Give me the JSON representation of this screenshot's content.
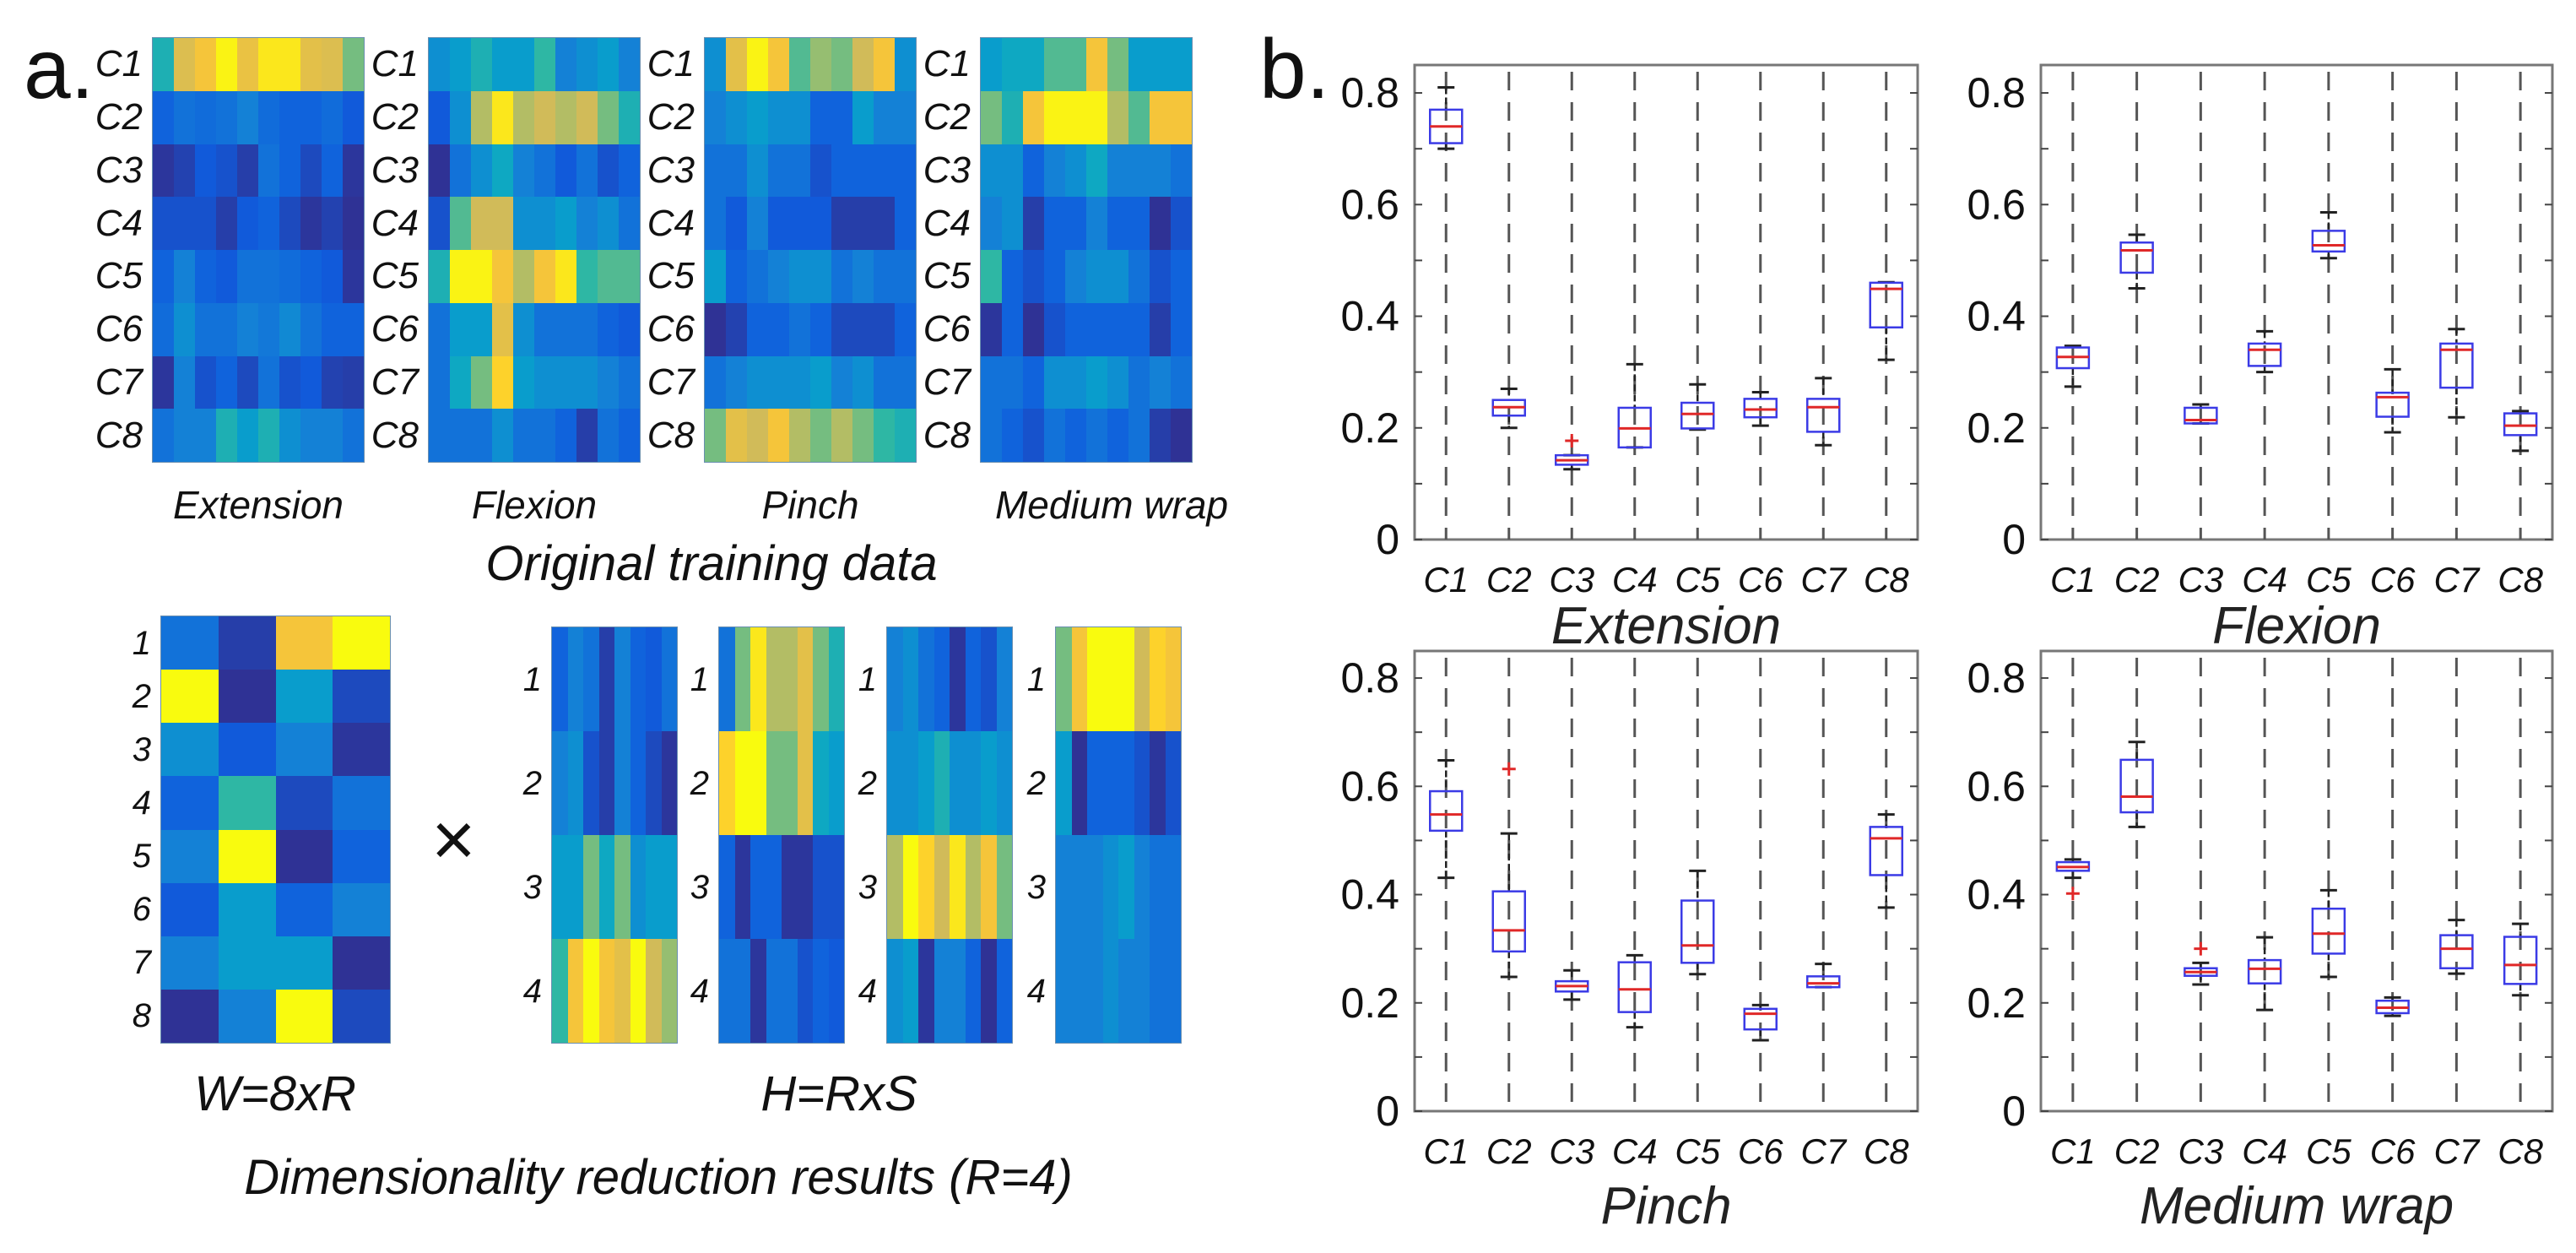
{
  "figure": {
    "panel_a_label": "a.",
    "panel_b_label": "b.",
    "original_title": "Original training data",
    "times_symbol": "×",
    "w_label": "W=8xR",
    "h_label": "H=RxS",
    "reduction_title": "Dimensionality reduction results (R=4)"
  },
  "colors": {
    "colormap": [
      "#352A87",
      "#0F5CDD",
      "#1481D6",
      "#06A4CA",
      "#2EB7A4",
      "#87BF77",
      "#D1BB59",
      "#FEC832",
      "#F9FB0E"
    ],
    "box_edge": "#3b3be6",
    "median": "#e02828",
    "whisker": "#222222",
    "outlier": "#e02828",
    "grid_dash": "#555555",
    "frame": "#777777"
  },
  "chart_data": [
    {
      "type": "heatmap",
      "name": "Extension",
      "rows": [
        "C1",
        "C2",
        "C3",
        "C4",
        "C5",
        "C6",
        "C7",
        "C8"
      ],
      "values": [
        [
          0.45,
          0.78,
          0.85,
          0.98,
          0.82,
          0.95,
          0.95,
          0.8,
          0.78,
          0.6
        ],
        [
          0.15,
          0.2,
          0.18,
          0.2,
          0.25,
          0.18,
          0.15,
          0.15,
          0.18,
          0.12
        ],
        [
          0.03,
          0.06,
          0.12,
          0.1,
          0.05,
          0.2,
          0.15,
          0.08,
          0.15,
          0.03
        ],
        [
          0.1,
          0.1,
          0.1,
          0.05,
          0.12,
          0.15,
          0.08,
          0.03,
          0.06,
          0.02
        ],
        [
          0.15,
          0.25,
          0.15,
          0.12,
          0.2,
          0.2,
          0.18,
          0.15,
          0.12,
          0.03
        ],
        [
          0.18,
          0.3,
          0.2,
          0.2,
          0.25,
          0.22,
          0.28,
          0.2,
          0.15,
          0.15
        ],
        [
          0.03,
          0.25,
          0.1,
          0.15,
          0.08,
          0.2,
          0.1,
          0.12,
          0.06,
          0.05
        ],
        [
          0.2,
          0.25,
          0.25,
          0.45,
          0.35,
          0.45,
          0.3,
          0.25,
          0.25,
          0.2
        ]
      ]
    },
    {
      "type": "heatmap",
      "name": "Flexion",
      "rows": [
        "C1",
        "C2",
        "C3",
        "C4",
        "C5",
        "C6",
        "C7",
        "C8"
      ],
      "values": [
        [
          0.3,
          0.35,
          0.45,
          0.35,
          0.35,
          0.5,
          0.25,
          0.3,
          0.35,
          0.25
        ],
        [
          0.12,
          0.3,
          0.7,
          0.95,
          0.7,
          0.75,
          0.7,
          0.75,
          0.6,
          0.45
        ],
        [
          0.02,
          0.2,
          0.3,
          0.4,
          0.25,
          0.2,
          0.12,
          0.2,
          0.1,
          0.15
        ],
        [
          0.1,
          0.55,
          0.75,
          0.75,
          0.3,
          0.3,
          0.35,
          0.25,
          0.3,
          0.2
        ],
        [
          0.45,
          0.98,
          0.98,
          0.85,
          0.7,
          0.85,
          0.95,
          0.5,
          0.55,
          0.55
        ],
        [
          0.2,
          0.35,
          0.35,
          0.8,
          0.3,
          0.2,
          0.2,
          0.2,
          0.15,
          0.12
        ],
        [
          0.2,
          0.4,
          0.6,
          0.9,
          0.35,
          0.3,
          0.3,
          0.3,
          0.25,
          0.2
        ],
        [
          0.2,
          0.2,
          0.2,
          0.3,
          0.2,
          0.2,
          0.15,
          0.05,
          0.2,
          0.15
        ]
      ]
    },
    {
      "type": "heatmap",
      "name": "Pinch",
      "rows": [
        "C1",
        "C2",
        "C3",
        "C4",
        "C5",
        "C6",
        "C7",
        "C8"
      ],
      "values": [
        [
          0.3,
          0.8,
          0.98,
          0.85,
          0.55,
          0.65,
          0.6,
          0.75,
          0.85,
          0.3
        ],
        [
          0.25,
          0.3,
          0.35,
          0.3,
          0.3,
          0.15,
          0.15,
          0.35,
          0.25,
          0.25
        ],
        [
          0.2,
          0.2,
          0.3,
          0.2,
          0.2,
          0.1,
          0.15,
          0.15,
          0.15,
          0.15
        ],
        [
          0.2,
          0.12,
          0.25,
          0.12,
          0.12,
          0.12,
          0.05,
          0.05,
          0.05,
          0.15
        ],
        [
          0.35,
          0.15,
          0.2,
          0.25,
          0.3,
          0.3,
          0.2,
          0.25,
          0.2,
          0.2
        ],
        [
          0.02,
          0.06,
          0.15,
          0.15,
          0.2,
          0.15,
          0.08,
          0.08,
          0.08,
          0.15
        ],
        [
          0.2,
          0.25,
          0.3,
          0.3,
          0.3,
          0.35,
          0.25,
          0.3,
          0.2,
          0.2
        ],
        [
          0.6,
          0.8,
          0.75,
          0.85,
          0.7,
          0.6,
          0.7,
          0.6,
          0.5,
          0.45
        ]
      ]
    },
    {
      "type": "heatmap",
      "name": "Medium wrap",
      "rows": [
        "C1",
        "C2",
        "C3",
        "C4",
        "C5",
        "C6",
        "C7",
        "C8"
      ],
      "values": [
        [
          0.35,
          0.4,
          0.4,
          0.55,
          0.55,
          0.85,
          0.6,
          0.35,
          0.35,
          0.35
        ],
        [
          0.6,
          0.45,
          0.85,
          0.98,
          0.98,
          0.98,
          0.7,
          0.55,
          0.85,
          0.85
        ],
        [
          0.3,
          0.3,
          0.15,
          0.25,
          0.3,
          0.4,
          0.25,
          0.25,
          0.25,
          0.2
        ],
        [
          0.25,
          0.3,
          0.05,
          0.15,
          0.15,
          0.25,
          0.15,
          0.15,
          0.02,
          0.1
        ],
        [
          0.5,
          0.15,
          0.1,
          0.15,
          0.25,
          0.3,
          0.3,
          0.2,
          0.1,
          0.15
        ],
        [
          0.03,
          0.15,
          0.02,
          0.1,
          0.15,
          0.15,
          0.15,
          0.15,
          0.05,
          0.15
        ],
        [
          0.2,
          0.2,
          0.15,
          0.3,
          0.3,
          0.35,
          0.3,
          0.2,
          0.25,
          0.2
        ],
        [
          0.2,
          0.15,
          0.1,
          0.2,
          0.15,
          0.2,
          0.15,
          0.2,
          0.05,
          0.02
        ]
      ]
    },
    {
      "type": "heatmap",
      "name": "W=8xR",
      "rows": [
        "1",
        "2",
        "3",
        "4",
        "5",
        "6",
        "7",
        "8"
      ],
      "values": [
        [
          0.2,
          0.05,
          0.85,
          1
        ],
        [
          1,
          0.02,
          0.35,
          0.08
        ],
        [
          0.3,
          0.12,
          0.25,
          0.03
        ],
        [
          0.15,
          0.5,
          0.08,
          0.2
        ],
        [
          0.25,
          1,
          0.02,
          0.15
        ],
        [
          0.12,
          0.35,
          0.15,
          0.25
        ],
        [
          0.25,
          0.35,
          0.35,
          0.02
        ],
        [
          0.02,
          0.25,
          1,
          0.08
        ]
      ]
    },
    {
      "type": "heatmap",
      "name": "H=RxS",
      "rows": [
        "1",
        "2",
        "3",
        "4"
      ],
      "values": [
        [
          0.15,
          0.25,
          0.2,
          0.05,
          0.25,
          0.15,
          0.12,
          0.2
        ],
        [
          0.25,
          0.3,
          0.1,
          0.05,
          0.25,
          0.15,
          0.08,
          0.03
        ],
        [
          0.35,
          0.35,
          0.6,
          0.4,
          0.6,
          0.3,
          0.35,
          0.35
        ],
        [
          0.5,
          0.85,
          1,
          0.85,
          0.8,
          1,
          0.75,
          0.65
        ]
      ]
    },
    {
      "type": "heatmap",
      "name": "H=RxS",
      "rows": [
        "1",
        "2",
        "3",
        "4"
      ],
      "values": [
        [
          0.2,
          0.6,
          0.95,
          0.7,
          0.7,
          0.8,
          0.6,
          0.45
        ],
        [
          0.9,
          1,
          1,
          0.6,
          0.6,
          0.8,
          0.4,
          0.35
        ],
        [
          0.15,
          0.03,
          0.15,
          0.15,
          0.03,
          0.03,
          0.1,
          0.1
        ],
        [
          0.2,
          0.2,
          0.03,
          0.2,
          0.2,
          0.1,
          0.15,
          0.12
        ]
      ]
    },
    {
      "type": "heatmap",
      "name": "H=RxS",
      "rows": [
        "1",
        "2",
        "3",
        "4"
      ],
      "values": [
        [
          0.25,
          0.3,
          0.2,
          0.15,
          0.03,
          0.15,
          0.1,
          0.25
        ],
        [
          0.3,
          0.3,
          0.35,
          0.45,
          0.3,
          0.3,
          0.35,
          0.3
        ],
        [
          0.7,
          1,
          0.9,
          0.75,
          0.95,
          0.7,
          0.85,
          0.6
        ],
        [
          0.3,
          0.35,
          0.03,
          0.25,
          0.25,
          0.15,
          0.02,
          0.15
        ]
      ]
    },
    {
      "type": "heatmap",
      "name": "H=RxS",
      "rows": [
        "1",
        "2",
        "3",
        "4"
      ],
      "values": [
        [
          0.6,
          0.85,
          1,
          1,
          1,
          0.75,
          0.9,
          0.85
        ],
        [
          0.35,
          0.02,
          0.15,
          0.15,
          0.15,
          0.1,
          0.03,
          0.1
        ],
        [
          0.25,
          0.25,
          0.25,
          0.3,
          0.35,
          0.25,
          0.2,
          0.2
        ],
        [
          0.25,
          0.25,
          0.25,
          0.3,
          0.25,
          0.25,
          0.2,
          0.2
        ]
      ]
    },
    {
      "type": "box",
      "title": "Extension",
      "categories": [
        "C1",
        "C2",
        "C3",
        "C4",
        "C5",
        "C6",
        "C7",
        "C8"
      ],
      "ylim": [
        0,
        0.85
      ],
      "yticks": [
        0,
        0.2,
        0.4,
        0.6,
        0.8
      ],
      "grid": "vertical-dashed",
      "stats": [
        {
          "low": 0.7,
          "q1": 0.71,
          "median": 0.74,
          "q3": 0.77,
          "high": 0.81,
          "outliers": []
        },
        {
          "low": 0.2,
          "q1": 0.222,
          "median": 0.237,
          "q3": 0.25,
          "high": 0.27,
          "outliers": []
        },
        {
          "low": 0.126,
          "q1": 0.134,
          "median": 0.142,
          "q3": 0.151,
          "high": 0.151,
          "outliers": [
            0.177
          ]
        },
        {
          "low": 0.165,
          "q1": 0.165,
          "median": 0.199,
          "q3": 0.236,
          "high": 0.314,
          "outliers": []
        },
        {
          "low": 0.197,
          "q1": 0.199,
          "median": 0.225,
          "q3": 0.245,
          "high": 0.278,
          "outliers": []
        },
        {
          "low": 0.204,
          "q1": 0.219,
          "median": 0.233,
          "q3": 0.252,
          "high": 0.264,
          "outliers": []
        },
        {
          "low": 0.169,
          "q1": 0.193,
          "median": 0.237,
          "q3": 0.252,
          "high": 0.289,
          "outliers": []
        },
        {
          "low": 0.322,
          "q1": 0.38,
          "median": 0.449,
          "q3": 0.46,
          "high": 0.461,
          "outliers": []
        }
      ]
    },
    {
      "type": "box",
      "title": "Flexion",
      "categories": [
        "C1",
        "C2",
        "C3",
        "C4",
        "C5",
        "C6",
        "C7",
        "C8"
      ],
      "ylim": [
        0,
        0.85
      ],
      "yticks": [
        0,
        0.2,
        0.4,
        0.6,
        0.8
      ],
      "grid": "vertical-dashed",
      "stats": [
        {
          "low": 0.274,
          "q1": 0.307,
          "median": 0.327,
          "q3": 0.344,
          "high": 0.347,
          "outliers": []
        },
        {
          "low": 0.45,
          "q1": 0.478,
          "median": 0.518,
          "q3": 0.532,
          "high": 0.546,
          "outliers": []
        },
        {
          "low": 0.208,
          "q1": 0.208,
          "median": 0.214,
          "q3": 0.236,
          "high": 0.242,
          "outliers": []
        },
        {
          "low": 0.3,
          "q1": 0.311,
          "median": 0.34,
          "q3": 0.351,
          "high": 0.373,
          "outliers": []
        },
        {
          "low": 0.504,
          "q1": 0.516,
          "median": 0.527,
          "q3": 0.553,
          "high": 0.586,
          "outliers": []
        },
        {
          "low": 0.192,
          "q1": 0.22,
          "median": 0.255,
          "q3": 0.263,
          "high": 0.305,
          "outliers": []
        },
        {
          "low": 0.219,
          "q1": 0.272,
          "median": 0.34,
          "q3": 0.351,
          "high": 0.377,
          "outliers": []
        },
        {
          "low": 0.159,
          "q1": 0.187,
          "median": 0.204,
          "q3": 0.226,
          "high": 0.23,
          "outliers": []
        }
      ]
    },
    {
      "type": "box",
      "title": "Pinch",
      "categories": [
        "C1",
        "C2",
        "C3",
        "C4",
        "C5",
        "C6",
        "C7",
        "C8"
      ],
      "ylim": [
        0,
        0.85
      ],
      "yticks": [
        0,
        0.2,
        0.4,
        0.6,
        0.8
      ],
      "grid": "vertical-dashed",
      "stats": [
        {
          "low": 0.431,
          "q1": 0.518,
          "median": 0.548,
          "q3": 0.591,
          "high": 0.648,
          "outliers": []
        },
        {
          "low": 0.248,
          "q1": 0.295,
          "median": 0.334,
          "q3": 0.406,
          "high": 0.513,
          "outliers": [
            0.632
          ]
        },
        {
          "low": 0.206,
          "q1": 0.221,
          "median": 0.231,
          "q3": 0.24,
          "high": 0.26,
          "outliers": []
        },
        {
          "low": 0.155,
          "q1": 0.183,
          "median": 0.225,
          "q3": 0.275,
          "high": 0.288,
          "outliers": []
        },
        {
          "low": 0.253,
          "q1": 0.274,
          "median": 0.306,
          "q3": 0.389,
          "high": 0.444,
          "outliers": []
        },
        {
          "low": 0.131,
          "q1": 0.151,
          "median": 0.18,
          "q3": 0.189,
          "high": 0.196,
          "outliers": []
        },
        {
          "low": 0.229,
          "q1": 0.229,
          "median": 0.236,
          "q3": 0.249,
          "high": 0.272,
          "outliers": []
        },
        {
          "low": 0.376,
          "q1": 0.436,
          "median": 0.504,
          "q3": 0.525,
          "high": 0.548,
          "outliers": []
        }
      ]
    },
    {
      "type": "box",
      "title": "Medium wrap",
      "categories": [
        "C1",
        "C2",
        "C3",
        "C4",
        "C5",
        "C6",
        "C7",
        "C8"
      ],
      "ylim": [
        0,
        0.85
      ],
      "yticks": [
        0,
        0.2,
        0.4,
        0.6,
        0.8
      ],
      "grid": "vertical-dashed",
      "stats": [
        {
          "low": 0.431,
          "q1": 0.444,
          "median": 0.451,
          "q3": 0.46,
          "high": 0.465,
          "outliers": [
            0.402
          ]
        },
        {
          "low": 0.525,
          "q1": 0.552,
          "median": 0.581,
          "q3": 0.649,
          "high": 0.682,
          "outliers": []
        },
        {
          "low": 0.234,
          "q1": 0.25,
          "median": 0.257,
          "q3": 0.264,
          "high": 0.274,
          "outliers": [
            0.3
          ]
        },
        {
          "low": 0.187,
          "q1": 0.236,
          "median": 0.263,
          "q3": 0.279,
          "high": 0.321,
          "outliers": []
        },
        {
          "low": 0.248,
          "q1": 0.291,
          "median": 0.328,
          "q3": 0.374,
          "high": 0.408,
          "outliers": []
        },
        {
          "low": 0.176,
          "q1": 0.181,
          "median": 0.191,
          "q3": 0.204,
          "high": 0.21,
          "outliers": []
        },
        {
          "low": 0.254,
          "q1": 0.264,
          "median": 0.3,
          "q3": 0.325,
          "high": 0.353,
          "outliers": []
        },
        {
          "low": 0.214,
          "q1": 0.235,
          "median": 0.27,
          "q3": 0.322,
          "high": 0.346,
          "outliers": []
        }
      ]
    }
  ]
}
